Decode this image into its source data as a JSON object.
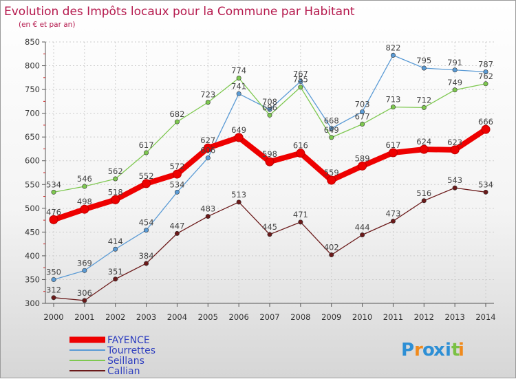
{
  "chart_data": {
    "type": "line",
    "title": "Evolution des Impôts locaux pour la Commune par Habitant",
    "subtitle": "(en € et par an)",
    "xlabel": "",
    "ylabel": "",
    "ylim": [
      300,
      850
    ],
    "yticks": [
      300,
      350,
      400,
      450,
      500,
      550,
      600,
      650,
      700,
      750,
      800,
      850
    ],
    "categories": [
      "2000",
      "2001",
      "2002",
      "2003",
      "2004",
      "2005",
      "2006",
      "2007",
      "2008",
      "2009",
      "2010",
      "2011",
      "2012",
      "2013",
      "2014"
    ],
    "series": [
      {
        "name": "FAYENCE",
        "color": "#ee0000",
        "values": [
          476,
          498,
          518,
          552,
          572,
          627,
          649,
          598,
          616,
          559,
          589,
          617,
          624,
          623,
          666
        ]
      },
      {
        "name": "Tourrettes",
        "color": "#5b9bd5",
        "values": [
          350,
          369,
          414,
          454,
          534,
          606,
          741,
          708,
          767,
          668,
          703,
          822,
          795,
          791,
          787
        ]
      },
      {
        "name": "Seillans",
        "color": "#7ec850",
        "values": [
          534,
          546,
          562,
          617,
          682,
          723,
          774,
          696,
          755,
          649,
          677,
          713,
          712,
          749,
          762
        ]
      },
      {
        "name": "Callian",
        "color": "#6b1a1a",
        "values": [
          312,
          306,
          351,
          384,
          447,
          483,
          513,
          445,
          471,
          402,
          444,
          473,
          516,
          543,
          534
        ]
      }
    ],
    "grid": true,
    "legend": "bottom-left"
  },
  "logo": {
    "text": "Proxiti",
    "letters": [
      "P",
      "r",
      "o",
      "x",
      "i",
      "t",
      "i"
    ],
    "colors": [
      "#2d8fd5",
      "#f08a1c",
      "#2d8fd5",
      "#2d8fd5",
      "#2d8fd5",
      "#7ac143",
      "#f08a1c"
    ]
  }
}
